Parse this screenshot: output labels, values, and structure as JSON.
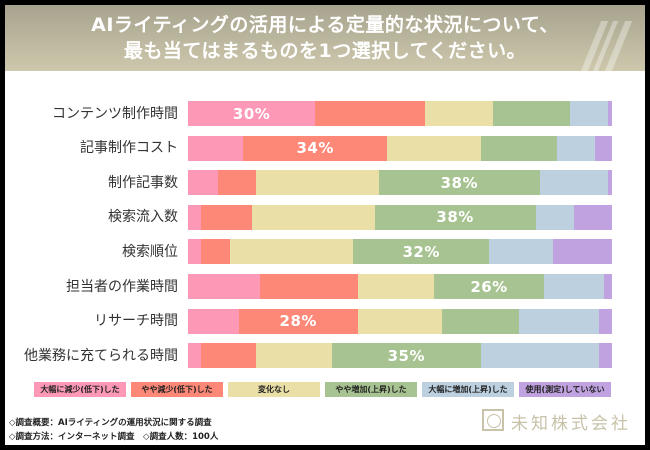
{
  "header": {
    "title_line1": "AIライティングの活用による定量的な状況について、",
    "title_line2": "最も当てはまるものを1つ選択してください。"
  },
  "chart_data": {
    "type": "bar",
    "orientation": "horizontal",
    "stacked": true,
    "normalized_percent": true,
    "title": "AIライティングの活用による定量的な状況について、最も当てはまるものを1つ選択してください。",
    "xlabel": "",
    "ylabel": "",
    "xlim": [
      0,
      100
    ],
    "grid": false,
    "legend_position": "bottom",
    "categories": [
      "コンテンツ制作時間",
      "記事制作コスト",
      "制作記事数",
      "検索流入数",
      "検索順位",
      "担当者の作業時間",
      "リサーチ時間",
      "他業務に充てられる時間"
    ],
    "series": [
      {
        "name": "大幅に減少(低下)した",
        "color": "#fd98b6",
        "values": [
          30,
          13,
          7,
          3,
          3,
          17,
          12,
          3
        ]
      },
      {
        "name": "やや減少(低下)した",
        "color": "#fe8878",
        "values": [
          26,
          34,
          9,
          12,
          7,
          23,
          28,
          13
        ]
      },
      {
        "name": "変化なし",
        "color": "#eadfa6",
        "values": [
          16,
          22,
          29,
          29,
          29,
          18,
          20,
          18
        ]
      },
      {
        "name": "やや増加(上昇)した",
        "color": "#a7c391",
        "values": [
          18,
          18,
          38,
          38,
          32,
          26,
          18,
          35
        ]
      },
      {
        "name": "大幅に増加(上昇)した",
        "color": "#bcd0df",
        "values": [
          9,
          9,
          16,
          9,
          15,
          14,
          19,
          28
        ]
      },
      {
        "name": "使用(測定)していない",
        "color": "#bfa2df",
        "values": [
          1,
          4,
          1,
          9,
          14,
          2,
          3,
          3
        ]
      }
    ],
    "data_labels": [
      {
        "category": "コンテンツ制作時間",
        "series_index": 0,
        "text": "30%"
      },
      {
        "category": "記事制作コスト",
        "series_index": 1,
        "text": "34%"
      },
      {
        "category": "制作記事数",
        "series_index": 3,
        "text": "38%"
      },
      {
        "category": "検索流入数",
        "series_index": 3,
        "text": "38%"
      },
      {
        "category": "検索順位",
        "series_index": 3,
        "text": "32%"
      },
      {
        "category": "担当者の作業時間",
        "series_index": 3,
        "text": "26%"
      },
      {
        "category": "リサーチ時間",
        "series_index": 1,
        "text": "28%"
      },
      {
        "category": "他業務に充てられる時間",
        "series_index": 3,
        "text": "35%"
      }
    ]
  },
  "footer": {
    "note1": "◇調査概要：AIライティングの運用状況に関する調査",
    "note2": "◇調査方法：インターネット調査　◇調査人数：100人",
    "company": "未知株式会社"
  }
}
